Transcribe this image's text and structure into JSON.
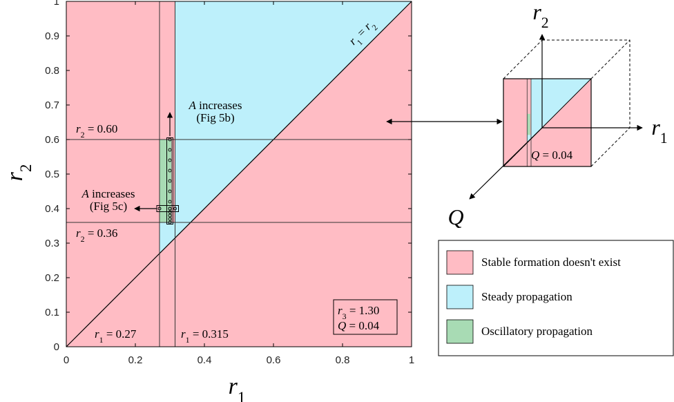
{
  "chart_data": {
    "type": "area",
    "xlabel": "r1",
    "ylabel": "r2",
    "xlim": [
      0,
      1
    ],
    "ylim": [
      0,
      1
    ],
    "x_ticks": [
      "0",
      "0.2",
      "0.4",
      "0.6",
      "0.8",
      "1"
    ],
    "y_ticks": [
      "0",
      "0.1",
      "0.2",
      "0.3",
      "0.4",
      "0.5",
      "0.6",
      "0.7",
      "0.8",
      "0.9",
      "1"
    ],
    "regions": [
      {
        "name": "Stable formation doesn't exist",
        "color": "#ffbcc4"
      },
      {
        "name": "Steady propagation",
        "color": "#bdf0fb"
      },
      {
        "name": "Oscillatory propagation",
        "color": "#a8dbb4"
      }
    ],
    "steady_region_polygon": [
      [
        0.27,
        0.27
      ],
      [
        0.27,
        0.36
      ],
      [
        0.315,
        0.36
      ],
      [
        0.315,
        1.0
      ],
      [
        1.0,
        1.0
      ]
    ],
    "oscillatory_region": {
      "x": [
        0.27,
        0.305
      ],
      "y": [
        0.36,
        0.6
      ]
    },
    "lines": {
      "diagonal": "r1 = r2",
      "h_lines": [
        0.6,
        0.36
      ],
      "v_lines": [
        0.27,
        0.315
      ]
    },
    "sample_points_vertical": {
      "x": 0.3,
      "y": [
        0.36,
        0.37,
        0.38,
        0.39,
        0.4,
        0.42,
        0.45,
        0.48,
        0.51,
        0.54,
        0.57,
        0.6
      ]
    },
    "sample_points_horizontal": {
      "y": 0.4,
      "x": [
        0.27,
        0.3,
        0.315
      ]
    },
    "labels": {
      "diag": "r1 = r2",
      "r2_060": "r2 = 0.60",
      "r2_036": "r2 = 0.36",
      "r1_027": "r1 = 0.27",
      "r1_0315": "r1 = 0.315",
      "a_inc_b_1": "A increases",
      "a_inc_b_2": "(Fig 5b)",
      "a_inc_c_1": "A increases",
      "a_inc_c_2": "(Fig 5c)",
      "params_r3": "r3 = 1.30",
      "params_q": "Q = 0.04"
    },
    "inset": {
      "axes": [
        "r2",
        "r1",
        "Q"
      ],
      "label": "Q = 0.04"
    },
    "legend": {
      "placement": "bottom-right",
      "entries": [
        "Stable formation doesn't exist",
        "Steady propagation",
        "Oscillatory propagation"
      ]
    }
  }
}
